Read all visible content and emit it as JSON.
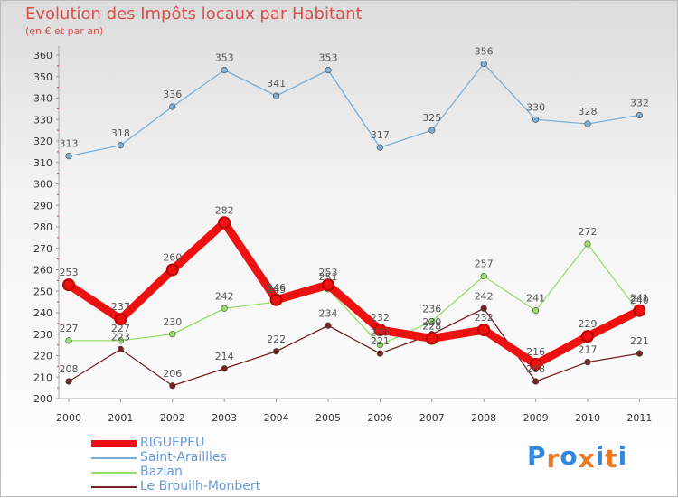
{
  "chart_data": {
    "type": "line",
    "title": "Evolution des Impôts locaux par Habitant",
    "subtitle": "(en € et par an)",
    "x": [
      "2000",
      "2001",
      "2002",
      "2003",
      "2004",
      "2005",
      "2006",
      "2007",
      "2008",
      "2009",
      "2010",
      "2011"
    ],
    "ylim": [
      200,
      360
    ],
    "yticks": [
      200,
      210,
      220,
      230,
      240,
      250,
      260,
      270,
      280,
      290,
      300,
      310,
      320,
      330,
      340,
      350,
      360
    ],
    "grid": false,
    "legend_position": "bottom-left",
    "series": [
      {
        "name": "RIGUEPEU",
        "values": [
          253,
          237,
          260,
          282,
          246,
          253,
          232,
          228,
          232,
          216,
          229,
          241
        ],
        "color": "#ee1111",
        "emphasis": true
      },
      {
        "name": "Saint-Araillles",
        "values": [
          313,
          318,
          336,
          353,
          341,
          353,
          317,
          325,
          356,
          330,
          328,
          332
        ],
        "color": "#7aaed6",
        "emphasis": false
      },
      {
        "name": "Bazian",
        "values": [
          227,
          227,
          230,
          242,
          245,
          251,
          225,
          236,
          257,
          241,
          272,
          240
        ],
        "color": "#99dd66",
        "emphasis": false
      },
      {
        "name": "Le Brouilh-Monbert",
        "values": [
          208,
          223,
          206,
          214,
          222,
          234,
          221,
          230,
          242,
          208,
          217,
          221
        ],
        "color": "#772222",
        "emphasis": false
      }
    ]
  },
  "logo": {
    "text": "Proxiti",
    "letter_colors": [
      "#3388dd",
      "#ee7722",
      "#3388dd",
      "#ee7722",
      "#3388dd",
      "#ee7722",
      "#3388dd"
    ]
  }
}
